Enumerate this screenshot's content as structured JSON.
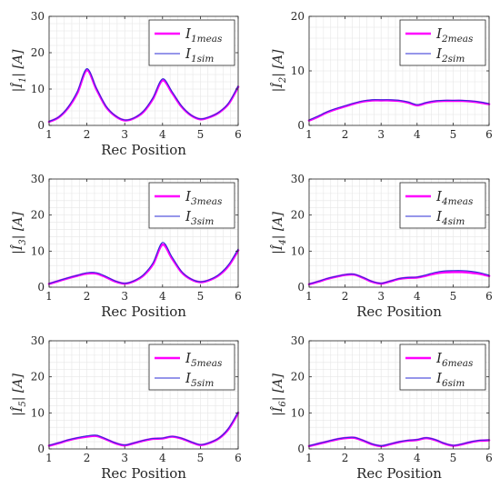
{
  "colors": {
    "meas": "#ff00ff",
    "sim": "#2d2dd6",
    "grid": "#e6e6e6",
    "axis": "#262626"
  },
  "chart_data": [
    {
      "type": "line",
      "ylabel_main": "|Î",
      "ylabel_sub": "1",
      "ylabel_unit": "|  [A]",
      "xlabel": "Rec Position",
      "xlim": [
        1,
        6
      ],
      "ylim": [
        0,
        30
      ],
      "xticks": [
        "1",
        "2",
        "3",
        "4",
        "5",
        "6"
      ],
      "yticks": [
        "0",
        "10",
        "20",
        "30"
      ],
      "legend": "top-right",
      "grid": true,
      "x": [
        1.0,
        1.25,
        1.5,
        1.75,
        2.0,
        2.25,
        2.5,
        2.75,
        3.0,
        3.25,
        3.5,
        3.75,
        4.0,
        4.25,
        4.5,
        4.75,
        5.0,
        5.25,
        5.5,
        5.75,
        6.0
      ],
      "series": [
        {
          "role": "meas",
          "label_main": "I",
          "label_sub": "1meas",
          "values": [
            1.0,
            2.2,
            4.8,
            9.0,
            15.2,
            10.0,
            5.2,
            2.6,
            1.4,
            2.0,
            3.8,
            7.4,
            12.4,
            9.0,
            5.2,
            2.8,
            1.7,
            2.3,
            3.6,
            6.0,
            10.6
          ]
        },
        {
          "role": "sim",
          "label_main": "I",
          "label_sub": "1sim",
          "values": [
            1.1,
            2.3,
            5.0,
            9.4,
            15.6,
            10.3,
            5.4,
            2.7,
            1.5,
            2.1,
            4.0,
            7.7,
            12.8,
            9.3,
            5.4,
            2.9,
            1.8,
            2.4,
            3.7,
            6.2,
            10.9
          ]
        }
      ]
    },
    {
      "type": "line",
      "ylabel_main": "|Î",
      "ylabel_sub": "2",
      "ylabel_unit": "|  [A]",
      "xlabel": "",
      "xlim": [
        1,
        6
      ],
      "ylim": [
        0,
        20
      ],
      "xticks": [
        "1",
        "2",
        "3",
        "4",
        "5",
        "6"
      ],
      "yticks": [
        "0",
        "10",
        "20"
      ],
      "legend": "top-right",
      "grid": true,
      "x": [
        1.0,
        1.25,
        1.5,
        1.75,
        2.0,
        2.25,
        2.5,
        2.75,
        3.0,
        3.25,
        3.5,
        3.75,
        4.0,
        4.25,
        4.5,
        4.75,
        5.0,
        5.25,
        5.5,
        5.75,
        6.0
      ],
      "series": [
        {
          "role": "meas",
          "label_main": "I",
          "label_sub": "2meas",
          "values": [
            0.9,
            1.6,
            2.4,
            3.0,
            3.5,
            4.0,
            4.4,
            4.6,
            4.6,
            4.6,
            4.5,
            4.2,
            3.7,
            4.1,
            4.4,
            4.5,
            4.5,
            4.5,
            4.4,
            4.2,
            3.9
          ]
        },
        {
          "role": "sim",
          "label_main": "I",
          "label_sub": "2sim",
          "values": [
            1.0,
            1.7,
            2.5,
            3.1,
            3.6,
            4.1,
            4.5,
            4.7,
            4.7,
            4.7,
            4.6,
            4.3,
            3.8,
            4.2,
            4.5,
            4.6,
            4.6,
            4.6,
            4.5,
            4.3,
            4.0
          ]
        }
      ]
    },
    {
      "type": "line",
      "ylabel_main": "|Î",
      "ylabel_sub": "3",
      "ylabel_unit": "|  [A]",
      "xlabel": "Rec Position",
      "xlim": [
        1,
        6
      ],
      "ylim": [
        0,
        30
      ],
      "xticks": [
        "1",
        "2",
        "3",
        "4",
        "5",
        "6"
      ],
      "yticks": [
        "0",
        "10",
        "20",
        "30"
      ],
      "legend": "top-right",
      "grid": true,
      "x": [
        1.0,
        1.25,
        1.5,
        1.75,
        2.0,
        2.25,
        2.5,
        2.75,
        3.0,
        3.25,
        3.5,
        3.75,
        4.0,
        4.25,
        4.5,
        4.75,
        5.0,
        5.25,
        5.5,
        5.75,
        6.0
      ],
      "series": [
        {
          "role": "meas",
          "label_main": "I",
          "label_sub": "3meas",
          "values": [
            0.9,
            1.7,
            2.5,
            3.2,
            3.8,
            3.8,
            2.8,
            1.6,
            1.0,
            1.7,
            3.3,
            6.4,
            11.8,
            8.0,
            4.2,
            2.2,
            1.4,
            2.0,
            3.4,
            6.0,
            10.2
          ]
        },
        {
          "role": "sim",
          "label_main": "I",
          "label_sub": "3sim",
          "values": [
            1.0,
            1.8,
            2.6,
            3.3,
            4.0,
            4.0,
            3.0,
            1.7,
            1.1,
            1.8,
            3.5,
            6.8,
            12.4,
            8.4,
            4.4,
            2.3,
            1.5,
            2.1,
            3.6,
            6.3,
            10.6
          ]
        }
      ]
    },
    {
      "type": "line",
      "ylabel_main": "|Î",
      "ylabel_sub": "4",
      "ylabel_unit": "|  [A]",
      "xlabel": "Rec Position",
      "xlim": [
        1,
        6
      ],
      "ylim": [
        0,
        30
      ],
      "xticks": [
        "1",
        "2",
        "3",
        "4",
        "5",
        "6"
      ],
      "yticks": [
        "0",
        "10",
        "20",
        "30"
      ],
      "legend": "top-right",
      "grid": true,
      "x": [
        1.0,
        1.25,
        1.5,
        1.75,
        2.0,
        2.25,
        2.5,
        2.75,
        3.0,
        3.25,
        3.5,
        3.75,
        4.0,
        4.25,
        4.5,
        4.75,
        5.0,
        5.25,
        5.5,
        5.75,
        6.0
      ],
      "series": [
        {
          "role": "meas",
          "label_main": "I",
          "label_sub": "4meas",
          "values": [
            0.8,
            1.5,
            2.3,
            2.9,
            3.4,
            3.5,
            2.6,
            1.5,
            1.0,
            1.6,
            2.3,
            2.6,
            2.7,
            3.2,
            3.8,
            4.1,
            4.2,
            4.2,
            4.0,
            3.7,
            3.1
          ]
        },
        {
          "role": "sim",
          "label_main": "I",
          "label_sub": "4sim",
          "values": [
            0.9,
            1.6,
            2.4,
            3.0,
            3.5,
            3.6,
            2.7,
            1.6,
            1.1,
            1.7,
            2.4,
            2.7,
            2.8,
            3.4,
            4.1,
            4.5,
            4.6,
            4.6,
            4.4,
            4.0,
            3.3
          ]
        }
      ]
    },
    {
      "type": "line",
      "ylabel_main": "|Î",
      "ylabel_sub": "5",
      "ylabel_unit": "|  [A]",
      "xlabel": "Rec Position",
      "xlim": [
        1,
        6
      ],
      "ylim": [
        0,
        30
      ],
      "xticks": [
        "1",
        "2",
        "3",
        "4",
        "5",
        "6"
      ],
      "yticks": [
        "0",
        "10",
        "20",
        "30"
      ],
      "legend": "top-right",
      "grid": true,
      "x": [
        1.0,
        1.25,
        1.5,
        1.75,
        2.0,
        2.25,
        2.5,
        2.75,
        3.0,
        3.25,
        3.5,
        3.75,
        4.0,
        4.25,
        4.5,
        4.75,
        5.0,
        5.25,
        5.5,
        5.75,
        6.0
      ],
      "series": [
        {
          "role": "meas",
          "label_main": "I",
          "label_sub": "5meas",
          "values": [
            0.9,
            1.6,
            2.4,
            3.0,
            3.4,
            3.6,
            2.7,
            1.6,
            1.0,
            1.6,
            2.3,
            2.8,
            2.9,
            3.4,
            2.9,
            1.9,
            1.1,
            1.7,
            3.0,
            5.6,
            10.0
          ]
        },
        {
          "role": "sim",
          "label_main": "I",
          "label_sub": "5sim",
          "values": [
            1.0,
            1.7,
            2.5,
            3.1,
            3.6,
            3.8,
            2.8,
            1.7,
            1.1,
            1.7,
            2.4,
            2.9,
            3.0,
            3.5,
            3.0,
            2.0,
            1.2,
            1.8,
            3.1,
            5.8,
            10.3
          ]
        }
      ]
    },
    {
      "type": "line",
      "ylabel_main": "|Î",
      "ylabel_sub": "6",
      "ylabel_unit": "|  [A]",
      "xlabel": "Rec Position",
      "xlim": [
        1,
        6
      ],
      "ylim": [
        0,
        30
      ],
      "xticks": [
        "1",
        "2",
        "3",
        "4",
        "5",
        "6"
      ],
      "yticks": [
        "0",
        "10",
        "20",
        "30"
      ],
      "legend": "top-right",
      "grid": true,
      "x": [
        1.0,
        1.25,
        1.5,
        1.75,
        2.0,
        2.25,
        2.5,
        2.75,
        3.0,
        3.25,
        3.5,
        3.75,
        4.0,
        4.25,
        4.5,
        4.75,
        5.0,
        5.25,
        5.5,
        5.75,
        6.0
      ],
      "series": [
        {
          "role": "meas",
          "label_main": "I",
          "label_sub": "6meas",
          "values": [
            0.8,
            1.4,
            2.0,
            2.6,
            3.0,
            3.1,
            2.3,
            1.3,
            0.8,
            1.3,
            1.9,
            2.3,
            2.5,
            3.0,
            2.5,
            1.5,
            0.9,
            1.3,
            1.9,
            2.3,
            2.4
          ]
        },
        {
          "role": "sim",
          "label_main": "I",
          "label_sub": "6sim",
          "values": [
            0.9,
            1.5,
            2.1,
            2.7,
            3.1,
            3.2,
            2.4,
            1.4,
            0.9,
            1.4,
            2.0,
            2.4,
            2.6,
            3.1,
            2.6,
            1.6,
            1.0,
            1.4,
            2.0,
            2.4,
            2.5
          ]
        }
      ]
    }
  ]
}
